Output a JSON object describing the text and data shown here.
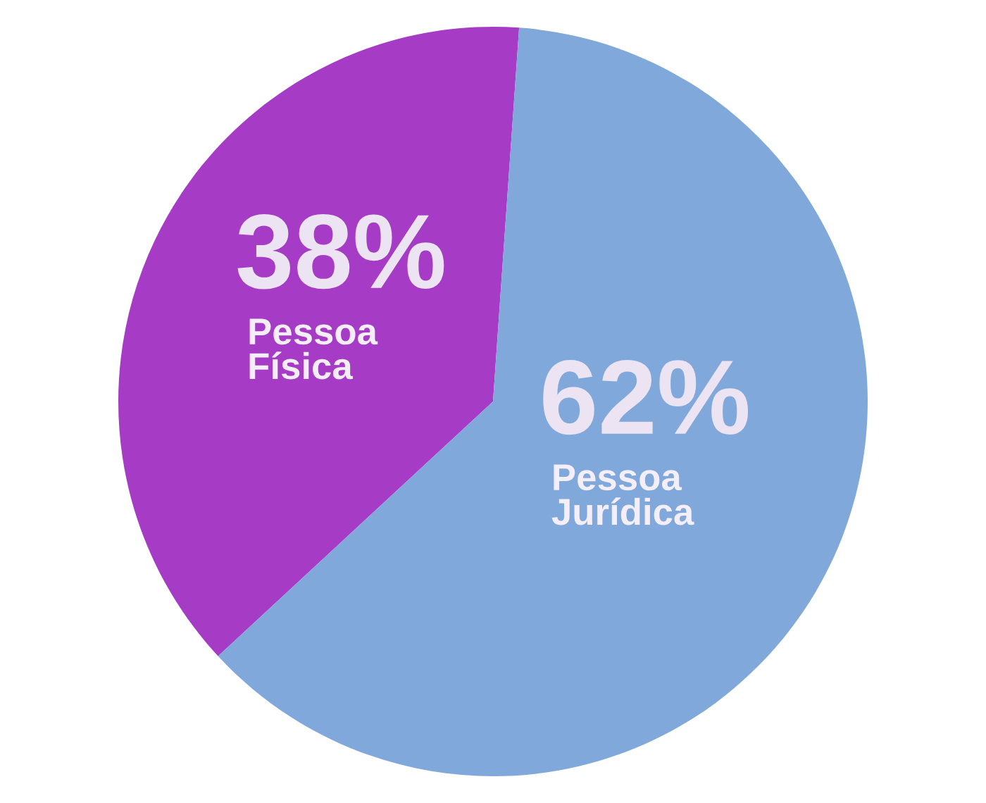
{
  "chart_data": {
    "type": "pie",
    "categories": [
      "Pessoa\nFísica",
      "Pessoa\nJurídica"
    ],
    "values": [
      38,
      62
    ],
    "colors": [
      "#a63cc6",
      "#80a8da"
    ],
    "value_labels": [
      "38%",
      "62%"
    ],
    "legend": false
  }
}
